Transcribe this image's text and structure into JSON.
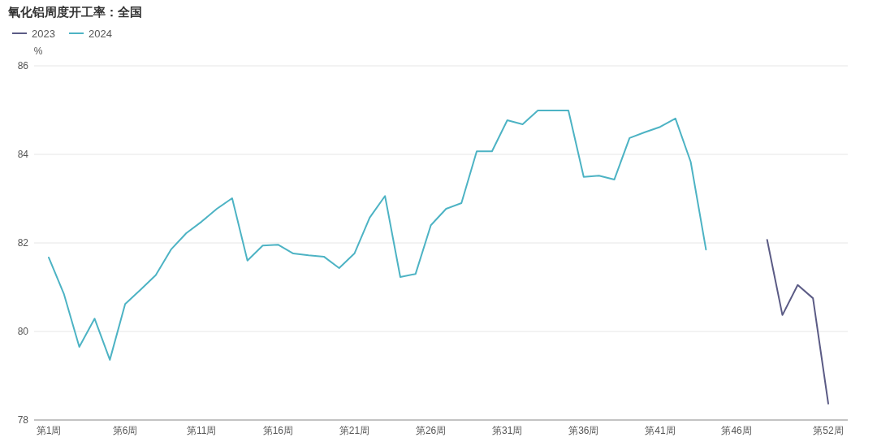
{
  "chart_data": {
    "type": "line",
    "title": "氧化铝周度开工率：全国",
    "ylabel": "%",
    "categories": [
      "第1周",
      null,
      null,
      null,
      null,
      "第6周",
      null,
      null,
      null,
      null,
      "第11周",
      null,
      null,
      null,
      null,
      "第16周",
      null,
      null,
      null,
      null,
      "第21周",
      null,
      null,
      null,
      null,
      "第26周",
      null,
      null,
      null,
      null,
      "第31周",
      null,
      null,
      null,
      null,
      "第36周",
      null,
      null,
      null,
      null,
      "第41周",
      null,
      null,
      null,
      null,
      "第46周",
      null,
      null,
      null,
      null,
      null,
      "第52周"
    ],
    "series": [
      {
        "name": "2023",
        "color": "#5b5b85",
        "values": [
          null,
          null,
          null,
          null,
          null,
          null,
          null,
          null,
          null,
          null,
          null,
          null,
          null,
          null,
          null,
          null,
          null,
          null,
          null,
          null,
          null,
          null,
          null,
          null,
          null,
          null,
          null,
          null,
          null,
          null,
          null,
          null,
          null,
          null,
          null,
          null,
          null,
          null,
          null,
          null,
          null,
          null,
          null,
          null,
          null,
          null,
          null,
          82.07,
          80.37,
          81.05,
          80.75,
          78.37
        ]
      },
      {
        "name": "2024",
        "color": "#4db3c4",
        "values": [
          81.67,
          80.84,
          79.65,
          80.29,
          79.36,
          80.62,
          80.94,
          81.27,
          81.85,
          82.22,
          82.48,
          82.77,
          83.01,
          81.6,
          81.94,
          81.96,
          81.76,
          81.72,
          81.69,
          81.43,
          81.76,
          82.57,
          83.06,
          81.23,
          81.3,
          82.4,
          82.77,
          82.9,
          84.07,
          84.07,
          84.77,
          84.68,
          84.99,
          84.99,
          84.99,
          83.49,
          83.52,
          83.43,
          84.37,
          84.5,
          84.62,
          84.81,
          83.83,
          81.85,
          null,
          null,
          null,
          null,
          null,
          null,
          null,
          null
        ]
      }
    ],
    "ylim": [
      78,
      86
    ],
    "yticks": [
      78,
      80,
      82,
      84,
      86
    ],
    "grid": "y",
    "legend": "top left",
    "marker": "none",
    "line_style": "solid"
  }
}
